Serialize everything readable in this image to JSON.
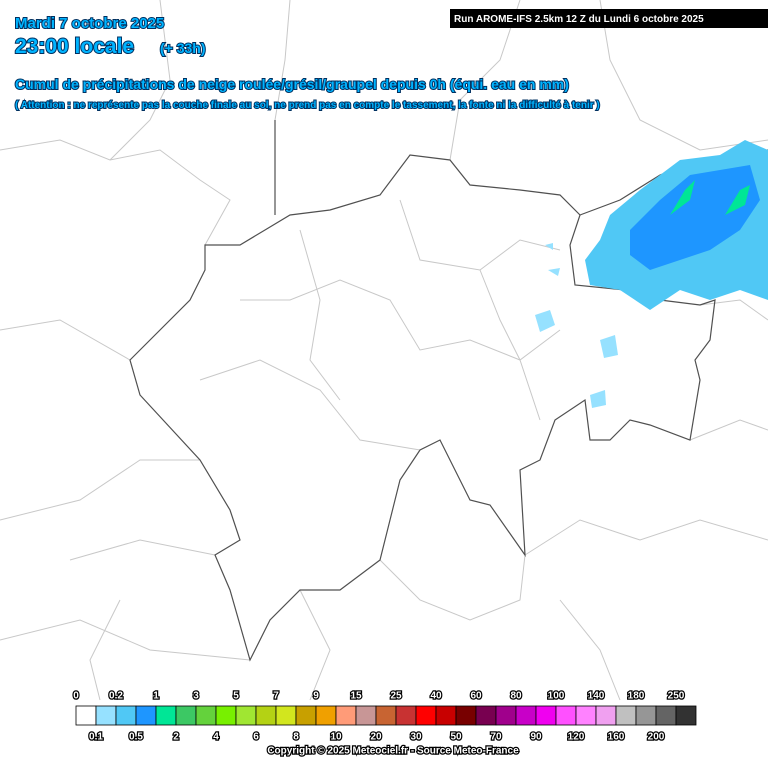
{
  "header": {
    "date": "Mardi 7 octobre 2025",
    "time": "23:00 locale",
    "lead": "(+ 33h)",
    "run": "Run AROME-IFS 2.5km 12 Z du Lundi 6 octobre 2025",
    "title": "Cumul de précipitations de neige roulée/grésil/graupel depuis 0h (équi. eau en mm)",
    "warning": "( Attention : ne représente pas la couche finale au sol, ne prend pas en compte le tassement, la fonte ni la difficulté à tenir )"
  },
  "legend": {
    "thresholds": [
      0,
      0.1,
      0.2,
      0.5,
      1,
      2,
      3,
      4,
      5,
      6,
      7,
      8,
      9,
      10,
      15,
      20,
      25,
      30,
      40,
      50,
      60,
      70,
      80,
      90,
      100,
      120,
      140,
      160,
      180,
      200,
      250
    ],
    "colors": [
      "#ffffff",
      "#96e1ff",
      "#50c8f5",
      "#1e96ff",
      "#00e696",
      "#3cc864",
      "#64d23c",
      "#78f000",
      "#a0e632",
      "#b4d214",
      "#d2e61e",
      "#c8a000",
      "#f0a000",
      "#ff9b78",
      "#c89696",
      "#c86432",
      "#c83232",
      "#ff0000",
      "#c80000",
      "#780000",
      "#780050",
      "#a0008c",
      "#c800c8",
      "#f000f0",
      "#ff50ff",
      "#ff82ff",
      "#f0a0f0",
      "#c0c0c0",
      "#969696",
      "#646464",
      "#323232"
    ]
  },
  "footer": {
    "copyright": "Copyright © 2025 Meteociel.fr - Source Meteo-France"
  }
}
